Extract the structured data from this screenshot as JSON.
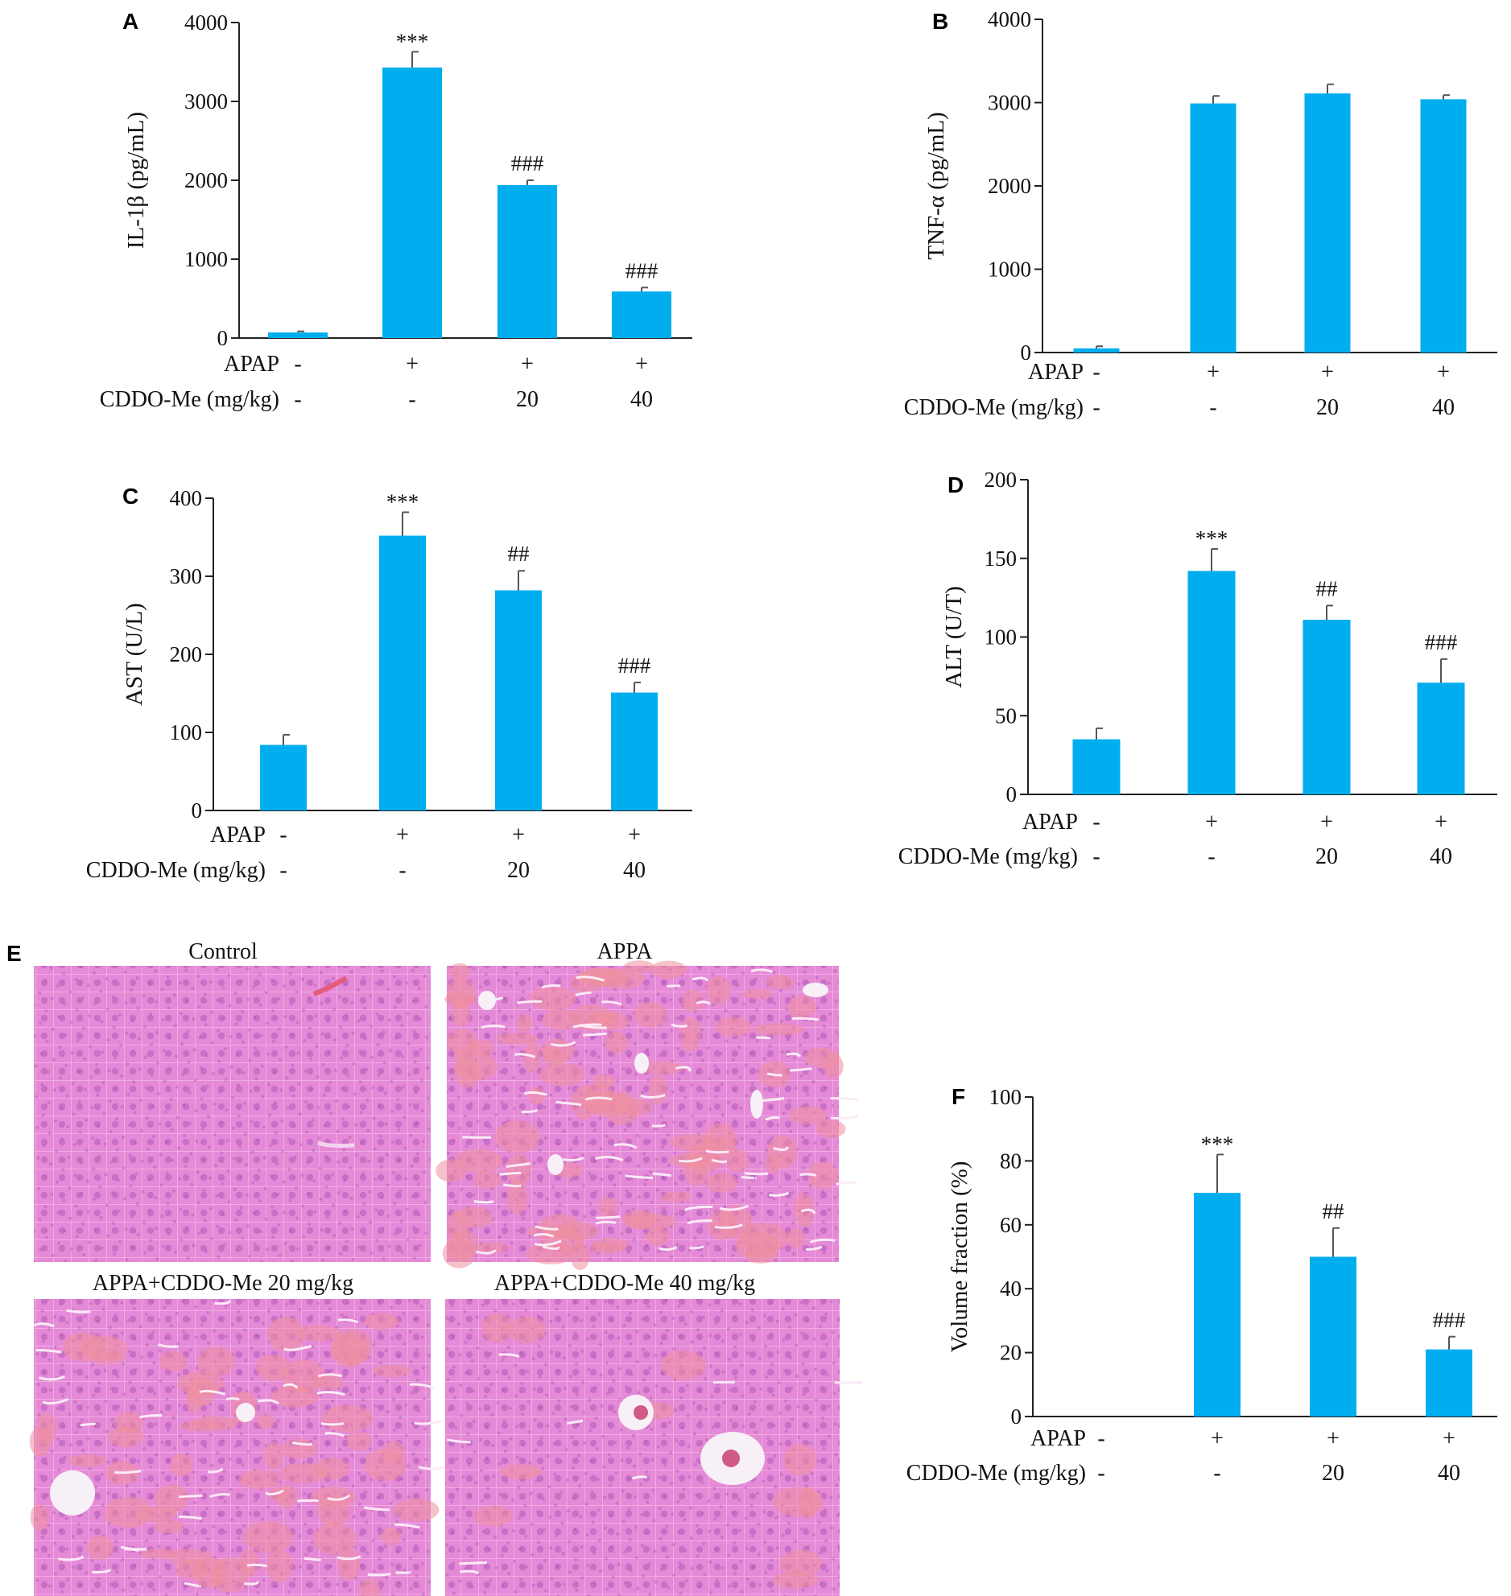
{
  "colors": {
    "bar": "#00AEEF",
    "axis": "#222222",
    "error_bar": "#555555",
    "tissue_base": "#E27BCF"
  },
  "row_labels": {
    "apap": "APAP",
    "cddo": "CDDO-Me (mg/kg)"
  },
  "chart_data": [
    {
      "panel": "A",
      "type": "bar",
      "ylabel": "IL-1β (pg/mL)",
      "ylim": [
        0,
        4000
      ],
      "yticks": [
        0,
        1000,
        2000,
        3000,
        4000
      ],
      "categories": [
        "1",
        "2",
        "3",
        "4"
      ],
      "values": [
        70,
        3430,
        1940,
        590
      ],
      "errors": [
        15,
        200,
        60,
        50
      ],
      "significance": [
        "",
        "***",
        "###",
        "###"
      ],
      "apap": [
        "-",
        "+",
        "+",
        "+"
      ],
      "cddo": [
        "-",
        "-",
        "20",
        "40"
      ]
    },
    {
      "panel": "B",
      "type": "bar",
      "ylabel": "TNF-α (pg/mL)",
      "ylim": [
        0,
        4000
      ],
      "yticks": [
        0,
        1000,
        2000,
        3000,
        4000
      ],
      "categories": [
        "1",
        "2",
        "3",
        "4"
      ],
      "values": [
        50,
        2990,
        3110,
        3040
      ],
      "errors": [
        25,
        90,
        110,
        50
      ],
      "significance": [
        "",
        "",
        "",
        ""
      ],
      "apap": [
        "-",
        "+",
        "+",
        "+"
      ],
      "cddo": [
        "-",
        "-",
        "20",
        "40"
      ]
    },
    {
      "panel": "C",
      "type": "bar",
      "ylabel": "AST (U/L)",
      "ylim": [
        0,
        400
      ],
      "yticks": [
        0,
        100,
        200,
        300,
        400
      ],
      "categories": [
        "1",
        "2",
        "3",
        "4"
      ],
      "values": [
        84,
        352,
        282,
        151
      ],
      "errors": [
        13,
        30,
        25,
        13
      ],
      "significance": [
        "",
        "***",
        "##",
        "###"
      ],
      "apap": [
        "-",
        "+",
        "+",
        "+"
      ],
      "cddo": [
        "-",
        "-",
        "20",
        "40"
      ]
    },
    {
      "panel": "D",
      "type": "bar",
      "ylabel": "ALT (U/T)",
      "ylim": [
        0,
        200
      ],
      "yticks": [
        0,
        50,
        100,
        150,
        200
      ],
      "categories": [
        "1",
        "2",
        "3",
        "4"
      ],
      "values": [
        35,
        142,
        111,
        71
      ],
      "errors": [
        7,
        14,
        9,
        15
      ],
      "significance": [
        "",
        "***",
        "##",
        "###"
      ],
      "apap": [
        "-",
        "+",
        "+",
        "+"
      ],
      "cddo": [
        "-",
        "-",
        "20",
        "40"
      ]
    },
    {
      "panel": "F",
      "type": "bar",
      "ylabel": "Volume fraction (%)",
      "ylim": [
        0,
        100
      ],
      "yticks": [
        0,
        20,
        40,
        60,
        80,
        100
      ],
      "categories": [
        "1",
        "2",
        "3",
        "4"
      ],
      "values": [
        0,
        70,
        50,
        21
      ],
      "errors": [
        0,
        12,
        9,
        4
      ],
      "significance": [
        "",
        "***",
        "##",
        "###"
      ],
      "apap": [
        "-",
        "+",
        "+",
        "+"
      ],
      "cddo": [
        "-",
        "-",
        "20",
        "40"
      ]
    }
  ],
  "micrographs": {
    "panel": "E",
    "titles": [
      "Control",
      "APPA",
      "APPA+CDDO-Me 20 mg/kg",
      "APPA+CDDO-Me 40 mg/kg"
    ],
    "damage_level": [
      0.0,
      0.85,
      0.55,
      0.1
    ]
  }
}
